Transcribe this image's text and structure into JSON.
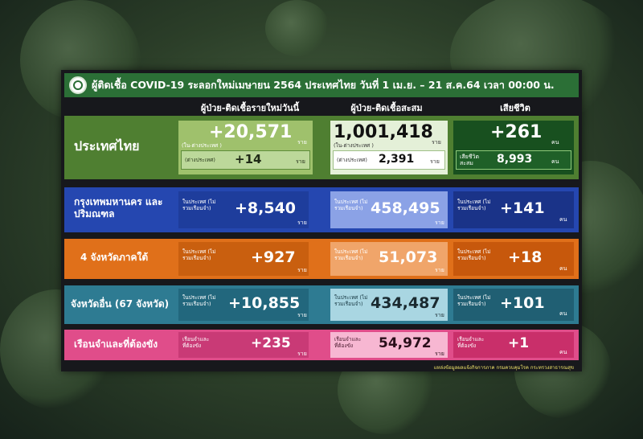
{
  "title": "ผู้ติดเชื้อ COVID-19 ระลอกใหม่เมษายน 2564 ประเทศไทย วันที่ 1 เม.ย. – 21 ส.ค.64 เวลา 00:00 น.",
  "columns": {
    "new": "ผู้ป่วย-ติดเชื้อรายใหม่วันนี้",
    "cumulative": "ผู้ป่วย-ติดเชื้อสะสม",
    "deaths": "เสียชีวิต"
  },
  "thailand": {
    "label": "ประเทศไทย",
    "new_value": "+20,571",
    "new_sub": "(ใน-ต่างประเทศ )",
    "new_unit": "ราย",
    "new_abroad_label": "(ต่างประเทศ)",
    "new_abroad_value": "+14",
    "new_abroad_unit": "ราย",
    "cum_value": "1,001,418",
    "cum_sub": "(ใน-ต่างประเทศ )",
    "cum_unit": "ราย",
    "cum_abroad_label": "(ต่างประเทศ)",
    "cum_abroad_value": "2,391",
    "cum_abroad_unit": "ราย",
    "death_value": "+261",
    "death_unit": "คน",
    "death_cum_label": "เสียชีวิต สะสม",
    "death_cum_value": "8,993",
    "death_cum_unit": "คน"
  },
  "regions": [
    {
      "label": "กรุงเทพมหานคร และปริมณฑล",
      "new_label": "ในประเทศ (ไม่รวมเรือนจำ)",
      "new_value": "+8,540",
      "new_unit": "ราย",
      "cum_label": "ในประเทศ (ไม่รวมเรือนจำ)",
      "cum_value": "458,495",
      "cum_unit": "ราย",
      "death_label": "ในประเทศ (ไม่รวมเรือนจำ)",
      "death_value": "+141",
      "death_unit": "คน"
    },
    {
      "label": "4 จังหวัดภาคใต้",
      "new_label": "ในประเทศ (ไม่รวมเรือนจำ)",
      "new_value": "+927",
      "new_unit": "ราย",
      "cum_label": "ในประเทศ (ไม่รวมเรือนจำ)",
      "cum_value": "51,073",
      "cum_unit": "ราย",
      "death_label": "ในประเทศ (ไม่รวมเรือนจำ)",
      "death_value": "+18",
      "death_unit": "คน"
    },
    {
      "label": "จังหวัดอื่น (67 จังหวัด)",
      "new_label": "ในประเทศ (ไม่รวมเรือนจำ)",
      "new_value": "+10,855",
      "new_unit": "ราย",
      "cum_label": "ในประเทศ (ไม่รวมเรือนจำ)",
      "cum_value": "434,487",
      "cum_unit": "ราย",
      "death_label": "ในประเทศ (ไม่รวมเรือนจำ)",
      "death_value": "+101",
      "death_unit": "คน"
    },
    {
      "label": "เรือนจำและที่ต้องขัง",
      "new_label": "เรือนจำและ ที่ต้องขัง",
      "new_value": "+235",
      "new_unit": "ราย",
      "cum_label": "เรือนจำและ ที่ต้องขัง",
      "cum_value": "54,972",
      "cum_unit": "ราย",
      "death_label": "เรือนจำและ ที่ต้องขัง",
      "death_value": "+1",
      "death_unit": "คน"
    }
  ],
  "source": "แหล่งข้อมูลผลแจ้งกิจการภาค กรมควบคุมโรค กระทรวงสาธารณสุข",
  "colors": {
    "title_bar": "#2b6f36",
    "thailand_row": "#4f7f31",
    "bkk_row": "#2547b0",
    "south_row": "#e0701a",
    "other_row": "#2e7b92",
    "prison_row": "#e04d8a"
  }
}
